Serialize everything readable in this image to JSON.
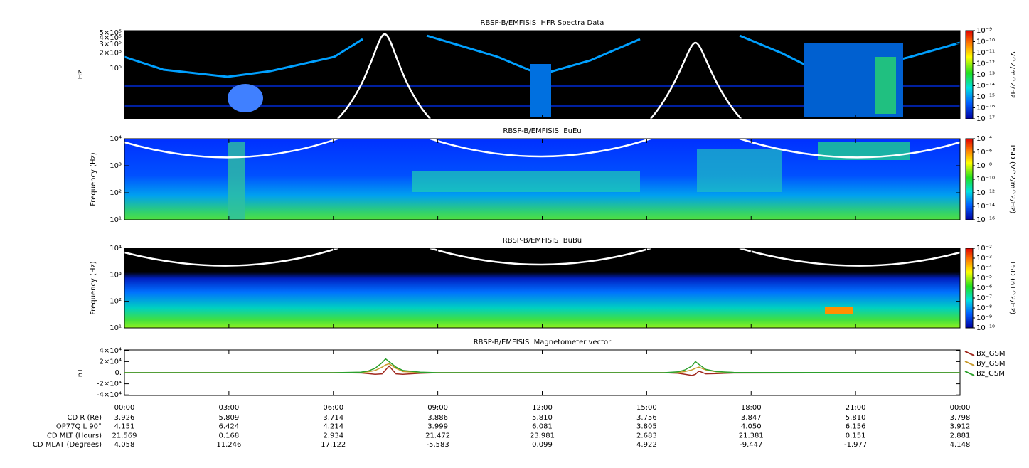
{
  "chart_data": [
    {
      "type": "spectrogram",
      "title": "RBSP-B/EMFISIS  HFR Spectra Data",
      "ylabel": "Hz",
      "log_y": true,
      "ylim": [
        10000,
        550000
      ],
      "yticks": [
        {
          "value": 500000,
          "label": "5×10⁵"
        },
        {
          "value": 400000,
          "label": "4×10⁵"
        },
        {
          "value": 300000,
          "label": "3×10⁵"
        },
        {
          "value": 200000,
          "label": "2×10⁵"
        },
        {
          "value": 100000,
          "label": "10⁵"
        }
      ],
      "colorbar": {
        "label": "V^2/m^2/Hz",
        "lim": [
          1e-17,
          1e-09
        ],
        "ticks": [
          {
            "value": 1e-09,
            "label": "10⁻⁹"
          },
          {
            "value": 1e-10,
            "label": "10⁻¹⁰"
          },
          {
            "value": 1e-11,
            "label": "10⁻¹¹"
          },
          {
            "value": 1e-12,
            "label": "10⁻¹²"
          },
          {
            "value": 1e-13,
            "label": "10⁻¹³"
          },
          {
            "value": 1e-14,
            "label": "10⁻¹⁴"
          },
          {
            "value": 1e-15,
            "label": "10⁻¹⁵"
          },
          {
            "value": 1e-16,
            "label": "10⁻¹⁶"
          },
          {
            "value": 1e-17,
            "label": "10⁻¹⁷"
          }
        ]
      }
    },
    {
      "type": "spectrogram",
      "title": "RBSP-B/EMFISIS  EuEu",
      "ylabel": "Frequency (Hz)",
      "log_y": true,
      "ylim": [
        10,
        10000
      ],
      "yticks": [
        {
          "value": 10000,
          "label": "10⁴"
        },
        {
          "value": 1000,
          "label": "10³"
        },
        {
          "value": 100,
          "label": "10²"
        },
        {
          "value": 10,
          "label": "10¹"
        }
      ],
      "colorbar": {
        "label": "PSD (V^2/m^2/Hz)",
        "lim": [
          1e-16,
          0.0001
        ],
        "ticks": [
          {
            "value": 0.0001,
            "label": "10⁻⁴"
          },
          {
            "value": 1e-06,
            "label": "10⁻⁶"
          },
          {
            "value": 1e-08,
            "label": "10⁻⁸"
          },
          {
            "value": 1e-10,
            "label": "10⁻¹⁰"
          },
          {
            "value": 1e-12,
            "label": "10⁻¹²"
          },
          {
            "value": 1e-14,
            "label": "10⁻¹⁴"
          },
          {
            "value": 1e-16,
            "label": "10⁻¹⁶"
          }
        ]
      }
    },
    {
      "type": "spectrogram",
      "title": "RBSP-B/EMFISIS  BuBu",
      "ylabel": "Frequency (Hz)",
      "log_y": true,
      "ylim": [
        10,
        10000
      ],
      "yticks": [
        {
          "value": 10000,
          "label": "10⁴"
        },
        {
          "value": 1000,
          "label": "10³"
        },
        {
          "value": 100,
          "label": "10²"
        },
        {
          "value": 10,
          "label": "10¹"
        }
      ],
      "colorbar": {
        "label": "PSD (nT^2/Hz)",
        "lim": [
          1e-10,
          0.01
        ],
        "ticks": [
          {
            "value": 0.01,
            "label": "10⁻²"
          },
          {
            "value": 0.001,
            "label": "10⁻³"
          },
          {
            "value": 0.0001,
            "label": "10⁻⁴"
          },
          {
            "value": 1e-05,
            "label": "10⁻⁵"
          },
          {
            "value": 1e-06,
            "label": "10⁻⁶"
          },
          {
            "value": 1e-07,
            "label": "10⁻⁷"
          },
          {
            "value": 1e-08,
            "label": "10⁻⁸"
          },
          {
            "value": 1e-09,
            "label": "10⁻⁹"
          },
          {
            "value": 1e-10,
            "label": "10⁻¹⁰"
          }
        ]
      }
    },
    {
      "type": "line",
      "title": "RBSP-B/EMFISIS  Magnetometer vector",
      "ylabel": "nT",
      "ylim": [
        -41000,
        41000
      ],
      "yticks": [
        {
          "value": 40000,
          "label": "4×10⁴"
        },
        {
          "value": 20000,
          "label": "2×10⁴"
        },
        {
          "value": 0,
          "label": "0."
        },
        {
          "value": -20000,
          "label": "-2×10⁴"
        },
        {
          "value": -40000,
          "label": "-4×10⁴"
        }
      ],
      "xlim": [
        0,
        24
      ],
      "xticks": [
        {
          "value": 0,
          "label": "00:00"
        },
        {
          "value": 3,
          "label": "03:00"
        },
        {
          "value": 6,
          "label": "06:00"
        },
        {
          "value": 9,
          "label": "09:00"
        },
        {
          "value": 12,
          "label": "12:00"
        },
        {
          "value": 15,
          "label": "15:00"
        },
        {
          "value": 18,
          "label": "18:00"
        },
        {
          "value": 21,
          "label": "21:00"
        },
        {
          "value": 24,
          "label": "00:00"
        }
      ],
      "x": [
        0,
        6,
        6.8,
        7.0,
        7.2,
        7.4,
        7.5,
        7.6,
        7.8,
        8.0,
        8.5,
        9,
        15.5,
        15.9,
        16.1,
        16.3,
        16.4,
        16.5,
        16.7,
        17,
        17.5,
        24
      ],
      "series": [
        {
          "name": "Bx_GSM",
          "color": "#a0281e",
          "values": [
            0,
            0,
            -500,
            -1500,
            -3000,
            -2000,
            5000,
            12000,
            -2000,
            -3000,
            -1000,
            0,
            0,
            -1000,
            -3000,
            -5000,
            -3000,
            3000,
            -2000,
            -1500,
            -500,
            0
          ]
        },
        {
          "name": "By_GSM",
          "color": "#c89a2c",
          "values": [
            0,
            0,
            500,
            1500,
            4000,
            10000,
            14000,
            16000,
            8000,
            2000,
            500,
            0,
            0,
            500,
            2000,
            5000,
            8000,
            10000,
            5000,
            1500,
            300,
            0
          ]
        },
        {
          "name": "Bz_GSM",
          "color": "#2ca02c",
          "values": [
            0,
            0,
            1000,
            3000,
            8000,
            18000,
            25000,
            20000,
            10000,
            4000,
            1000,
            0,
            0,
            1500,
            5000,
            12000,
            20000,
            15000,
            6000,
            2000,
            500,
            0
          ]
        }
      ]
    }
  ],
  "ephemeris": {
    "rows": [
      {
        "label": "CD R (Re)",
        "values": [
          "3.926",
          "5.809",
          "3.714",
          "3.886",
          "5.810",
          "3.756",
          "3.847",
          "5.810",
          "3.798"
        ]
      },
      {
        "label": "OP77Q L 90°",
        "values": [
          "4.151",
          "6.424",
          "4.214",
          "3.999",
          "6.081",
          "3.805",
          "4.050",
          "6.156",
          "3.912"
        ]
      },
      {
        "label": "CD MLT (Hours)",
        "values": [
          "21.569",
          "0.168",
          "2.934",
          "21.472",
          "23.981",
          "2.683",
          "21.381",
          "0.151",
          "2.881"
        ]
      },
      {
        "label": "CD MLAT (Degrees)",
        "values": [
          "4.058",
          "11.246",
          "17.122",
          "-5.583",
          "0.099",
          "4.922",
          "-9.447",
          "-1.977",
          "4.148"
        ]
      }
    ]
  }
}
